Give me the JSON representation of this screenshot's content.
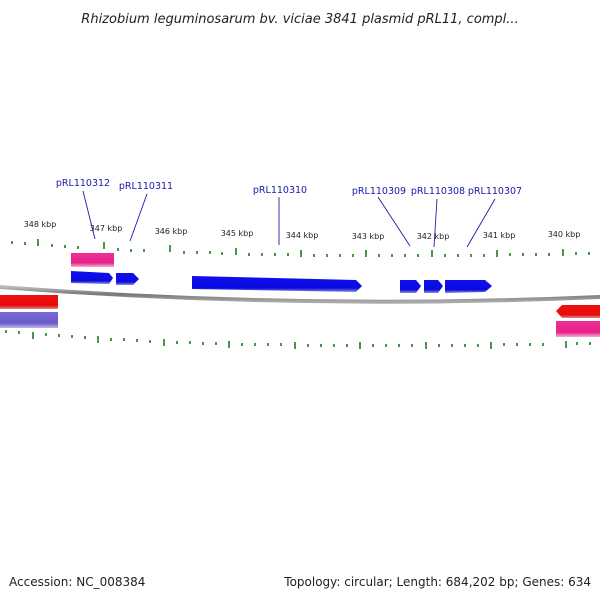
{
  "title": "Rhizobium leguminosarum bv. viciae 3841 plasmid pRL11, compl...",
  "footer": {
    "accession": "Accession: NC_008384",
    "summary": "Topology: circular; Length: 684,202 bp; Genes: 634"
  },
  "colors": {
    "forward_gene": "#0a0aee",
    "red_feature": "#ee0a0a",
    "pink_feature": "#e8208a",
    "purple_feature": "#6a5ac8",
    "backbone": "#888888",
    "tick": "#1f7a1f",
    "label": "#1a1aa8"
  },
  "ticks": [
    {
      "kbp": 348,
      "label": "348 kbp"
    },
    {
      "kbp": 347,
      "label": "347 kbp"
    },
    {
      "kbp": 346,
      "label": "346 kbp"
    },
    {
      "kbp": 345,
      "label": "345 kbp"
    },
    {
      "kbp": 344,
      "label": "344 kbp"
    },
    {
      "kbp": 343,
      "label": "343 kbp"
    },
    {
      "kbp": 342,
      "label": "342 kbp"
    },
    {
      "kbp": 341,
      "label": "341 kbp"
    },
    {
      "kbp": 340,
      "label": "340 kbp"
    }
  ],
  "gene_labels": [
    {
      "name": "pRL110312"
    },
    {
      "name": "pRL110311"
    },
    {
      "name": "pRL110310"
    },
    {
      "name": "pRL110309"
    },
    {
      "name": "pRL110308"
    },
    {
      "name": "pRL110307"
    }
  ]
}
